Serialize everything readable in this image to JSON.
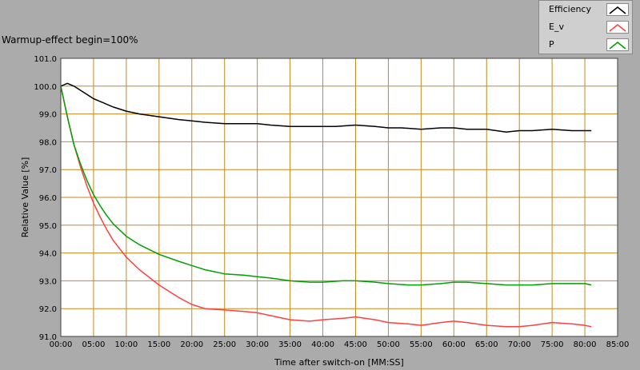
{
  "window": {
    "title": "Warmup-effect begin=100%"
  },
  "legend": [
    {
      "name": "Efficiency",
      "color": "#000000"
    },
    {
      "name": "E_v",
      "color": "#ff4040"
    },
    {
      "name": "P",
      "color": "#00a000"
    }
  ],
  "chart_data": {
    "type": "line",
    "title": "Warmup-effect begin=100%",
    "xlabel": "Time after switch-on [MM:SS]",
    "ylabel": "Relative Value [%]",
    "xlim": [
      0,
      85
    ],
    "ylim": [
      91.0,
      101.0
    ],
    "x_ticks": [
      "00:00",
      "05:00",
      "10:00",
      "15:00",
      "20:00",
      "25:00",
      "30:00",
      "35:00",
      "40:00",
      "45:00",
      "50:00",
      "55:00",
      "60:00",
      "65:00",
      "70:00",
      "75:00",
      "80:00",
      "85:00"
    ],
    "y_ticks": [
      "91.0",
      "92.0",
      "93.0",
      "94.0",
      "95.0",
      "96.0",
      "97.0",
      "98.0",
      "99.0",
      "100.0",
      "101.0"
    ],
    "grid": true,
    "legend_position": "top-right",
    "series": [
      {
        "name": "Efficiency",
        "color": "#000000",
        "x": [
          0,
          1,
          2,
          3,
          4,
          5,
          6,
          8,
          10,
          12,
          15,
          18,
          20,
          22,
          25,
          28,
          30,
          32,
          35,
          38,
          40,
          42,
          45,
          48,
          50,
          52,
          55,
          58,
          60,
          62,
          65,
          68,
          70,
          72,
          75,
          78,
          80,
          81
        ],
        "y": [
          100.0,
          100.1,
          100.0,
          99.85,
          99.7,
          99.55,
          99.45,
          99.25,
          99.1,
          99.0,
          98.9,
          98.8,
          98.75,
          98.7,
          98.65,
          98.65,
          98.65,
          98.6,
          98.55,
          98.55,
          98.55,
          98.55,
          98.6,
          98.55,
          98.5,
          98.5,
          98.45,
          98.5,
          98.5,
          98.45,
          98.45,
          98.35,
          98.4,
          98.4,
          98.45,
          98.4,
          98.4,
          98.4
        ]
      },
      {
        "name": "E_v",
        "color": "#ff4040",
        "x": [
          0,
          1,
          2,
          3,
          4,
          5,
          6,
          7,
          8,
          10,
          12,
          15,
          18,
          20,
          22,
          25,
          28,
          30,
          32,
          35,
          38,
          40,
          43,
          45,
          48,
          50,
          53,
          55,
          58,
          60,
          62,
          65,
          68,
          70,
          72,
          75,
          78,
          80,
          81
        ],
        "y": [
          100.0,
          98.9,
          97.9,
          97.1,
          96.4,
          95.8,
          95.3,
          94.85,
          94.45,
          93.85,
          93.4,
          92.85,
          92.4,
          92.15,
          92.0,
          91.95,
          91.9,
          91.85,
          91.75,
          91.6,
          91.55,
          91.6,
          91.65,
          91.7,
          91.6,
          91.5,
          91.45,
          91.4,
          91.5,
          91.55,
          91.5,
          91.4,
          91.35,
          91.35,
          91.4,
          91.5,
          91.45,
          91.4,
          91.35
        ]
      },
      {
        "name": "P",
        "color": "#00a000",
        "x": [
          0,
          1,
          2,
          3,
          4,
          5,
          6,
          7,
          8,
          10,
          12,
          15,
          18,
          20,
          22,
          25,
          28,
          30,
          32,
          35,
          38,
          40,
          43,
          45,
          48,
          50,
          53,
          55,
          58,
          60,
          62,
          65,
          68,
          70,
          72,
          75,
          78,
          80,
          81
        ],
        "y": [
          100.0,
          98.9,
          97.9,
          97.2,
          96.6,
          96.1,
          95.7,
          95.35,
          95.05,
          94.6,
          94.3,
          93.95,
          93.7,
          93.55,
          93.4,
          93.25,
          93.2,
          93.15,
          93.1,
          93.0,
          92.95,
          92.95,
          93.0,
          93.0,
          92.95,
          92.9,
          92.85,
          92.85,
          92.9,
          92.95,
          92.95,
          92.9,
          92.85,
          92.85,
          92.85,
          92.9,
          92.9,
          92.9,
          92.85
        ]
      }
    ]
  }
}
